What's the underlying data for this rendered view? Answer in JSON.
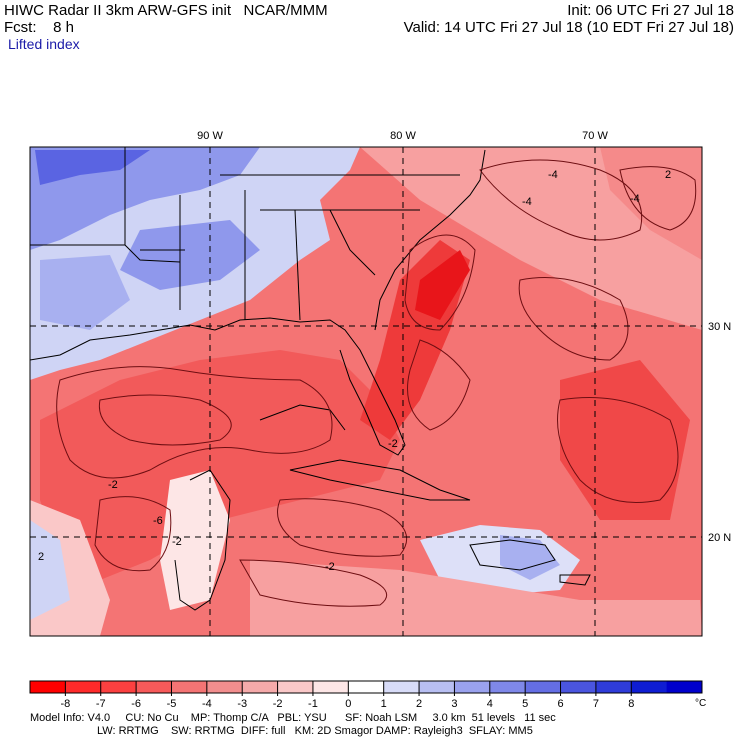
{
  "header": {
    "line1_left": "HIWC Radar II 3km ARW-GFS init   NCAR/MMM",
    "line1_right": "Init: 06 UTC Fri 27 Jul 18",
    "line2_left": "Fcst:    8 h",
    "line2_right": "Valid: 14 UTC Fri 27 Jul 18 (10 EDT Fri 27 Jul 18)",
    "field_label": "Lifted index",
    "field_label_color": "#1a1aa8"
  },
  "map": {
    "lon_labels": [
      "90 W",
      "80 W",
      "70 W"
    ],
    "lat_labels": [
      "30 N",
      "20 N"
    ],
    "contour_labels": [
      "-4",
      "-4",
      "-4",
      "2",
      "-2",
      "-2",
      "-2",
      "-6",
      "-2",
      "2"
    ],
    "colors": {
      "deep_red": "#e8151a",
      "red": "#f04848",
      "light_red": "#f58a8a",
      "pink": "#fac8c8",
      "white": "#ffffff",
      "light_blue": "#cfd4f5",
      "blue": "#7d87ea",
      "deep_blue": "#4a55e0",
      "contour": "#6e0e12",
      "border": "#000000"
    }
  },
  "colorbar": {
    "ticks": [
      "-8",
      "-7",
      "-6",
      "-5",
      "-4",
      "-3",
      "-2",
      "-1",
      "0",
      "1",
      "2",
      "3",
      "4",
      "5",
      "6",
      "7",
      "8"
    ],
    "unit": "°C",
    "colors": [
      "#ff0000",
      "#ff2a2a",
      "#fb4040",
      "#f75a5a",
      "#f47474",
      "#f28e8e",
      "#f5aaaa",
      "#fac8c8",
      "#fde6e6",
      "#ffffff",
      "#d8dcf8",
      "#b8bff2",
      "#9aa2ee",
      "#7f88e9",
      "#646eE4",
      "#4a55df",
      "#2f3cd9",
      "#0f1dd3",
      "#0000cc"
    ]
  },
  "footer": {
    "line1": "Model Info: V4.0     CU: No Cu    MP: Thomp C/A   PBL: YSU      SF: Noah LSM     3.0 km  51 levels   11 sec",
    "line2": "LW: RRTMG    SW: RRTMG  DIFF: full   KM: 2D Smagor DAMP: Rayleigh3  SFLAY: MM5"
  }
}
